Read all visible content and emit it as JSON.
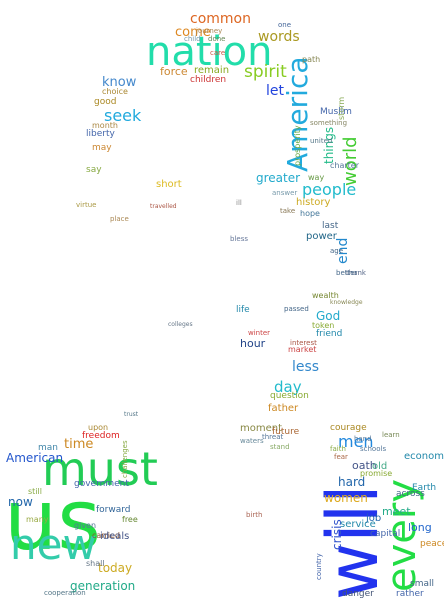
{
  "words": [
    {
      "text": "us",
      "color": "#22dd44"
    },
    {
      "text": "will",
      "color": "#2233ee"
    },
    {
      "text": "must",
      "color": "#22cc55"
    },
    {
      "text": "nation",
      "color": "#22ddaa"
    },
    {
      "text": "new",
      "color": "#33ccaa"
    },
    {
      "text": "every",
      "color": "#22dd44"
    },
    {
      "text": "America",
      "color": "#22aadd"
    },
    {
      "text": "common",
      "color": "#dd6622"
    },
    {
      "text": "spirit",
      "color": "#88cc22"
    },
    {
      "text": "people",
      "color": "#22bbcc"
    },
    {
      "text": "world",
      "color": "#44cc33"
    },
    {
      "text": "words",
      "color": "#aa9922"
    },
    {
      "text": "come",
      "color": "#dd8822"
    },
    {
      "text": "force",
      "color": "#cc8833"
    },
    {
      "text": "remain",
      "color": "#88aa22"
    },
    {
      "text": "children",
      "color": "#cc3333"
    },
    {
      "text": "know",
      "color": "#4488cc"
    },
    {
      "text": "let",
      "color": "#2244dd"
    },
    {
      "text": "seek",
      "color": "#22aadd"
    },
    {
      "text": "things",
      "color": "#22bb88"
    },
    {
      "text": "end",
      "color": "#2288cc"
    },
    {
      "text": "greater",
      "color": "#22aacc"
    },
    {
      "text": "history",
      "color": "#ccaa22"
    },
    {
      "text": "short",
      "color": "#ddbb22"
    },
    {
      "text": "time",
      "color": "#cc8822"
    },
    {
      "text": "men",
      "color": "#2288dd"
    },
    {
      "text": "day",
      "color": "#22bbcc"
    },
    {
      "text": "less",
      "color": "#3388cc"
    },
    {
      "text": "God",
      "color": "#22aacc"
    },
    {
      "text": "hour",
      "color": "#224488"
    },
    {
      "text": "American",
      "color": "#2255cc"
    },
    {
      "text": "now",
      "color": "#2266aa"
    },
    {
      "text": "today",
      "color": "#ccaa22"
    },
    {
      "text": "generation",
      "color": "#22aa88"
    },
    {
      "text": "hard",
      "color": "#2266aa"
    },
    {
      "text": "meet",
      "color": "#22aa88"
    },
    {
      "text": "women",
      "color": "#ddaa22"
    },
    {
      "text": "long",
      "color": "#2266cc"
    },
    {
      "text": "crisis",
      "color": "#3355cc"
    },
    {
      "text": "father",
      "color": "#cc8822"
    },
    {
      "text": "moment",
      "color": "#888844"
    },
    {
      "text": "power",
      "color": "#226688"
    },
    {
      "text": "good",
      "color": "#aa8822"
    },
    {
      "text": "liberty",
      "color": "#4466aa"
    },
    {
      "text": "may",
      "color": "#cc8833"
    },
    {
      "text": "say",
      "color": "#88aa44"
    },
    {
      "text": "choice",
      "color": "#aa8833"
    },
    {
      "text": "month",
      "color": "#aa8844"
    },
    {
      "text": "hope",
      "color": "#447799"
    },
    {
      "text": "way",
      "color": "#669944"
    },
    {
      "text": "last",
      "color": "#446688"
    },
    {
      "text": "friend",
      "color": "#2288aa"
    },
    {
      "text": "future",
      "color": "#aa6633"
    },
    {
      "text": "question",
      "color": "#88aa33"
    },
    {
      "text": "market",
      "color": "#cc4444"
    },
    {
      "text": "wealth",
      "color": "#778833"
    },
    {
      "text": "token",
      "color": "#88aa33"
    },
    {
      "text": "oath",
      "color": "#445588"
    },
    {
      "text": "courage",
      "color": "#aa8822"
    },
    {
      "text": "economy",
      "color": "#2288aa"
    },
    {
      "text": "Earth",
      "color": "#2288aa"
    },
    {
      "text": "old",
      "color": "#44aa88"
    },
    {
      "text": "promise",
      "color": "#88aa33"
    },
    {
      "text": "across",
      "color": "#446688"
    },
    {
      "text": "job",
      "color": "#2266aa"
    },
    {
      "text": "service",
      "color": "#2288aa"
    },
    {
      "text": "capital",
      "color": "#4466aa"
    },
    {
      "text": "peace",
      "color": "#cc8822"
    },
    {
      "text": "rather",
      "color": "#4466aa"
    },
    {
      "text": "small",
      "color": "#446688"
    },
    {
      "text": "danger",
      "color": "#445577"
    },
    {
      "text": "freedom",
      "color": "#dd2222"
    },
    {
      "text": "man",
      "color": "#4488aa"
    },
    {
      "text": "government",
      "color": "#4466aa"
    },
    {
      "text": "upon",
      "color": "#aa8833"
    },
    {
      "text": "carried",
      "color": "#885533"
    },
    {
      "text": "forward",
      "color": "#336699"
    },
    {
      "text": "ideals",
      "color": "#445588"
    },
    {
      "text": "free",
      "color": "#668833"
    },
    {
      "text": "given",
      "color": "#557799"
    },
    {
      "text": "still",
      "color": "#88aa44"
    },
    {
      "text": "shall",
      "color": "#667788"
    },
    {
      "text": "many",
      "color": "#99aa44"
    },
    {
      "text": "Muslim",
      "color": "#4466aa"
    },
    {
      "text": "path",
      "color": "#888855"
    },
    {
      "text": "storm",
      "color": "#88aa55"
    },
    {
      "text": "charter",
      "color": "#557799"
    },
    {
      "text": "prosperity",
      "color": "#66aa44"
    },
    {
      "text": "virtue",
      "color": "#aa9944"
    },
    {
      "text": "journey",
      "color": "#aa8855"
    },
    {
      "text": "child",
      "color": "#7799aa"
    },
    {
      "text": "done",
      "color": "#668855"
    },
    {
      "text": "one",
      "color": "#446699"
    },
    {
      "text": "something",
      "color": "#888866"
    },
    {
      "text": "answer",
      "color": "#7799aa"
    },
    {
      "text": "united",
      "color": "#557788"
    },
    {
      "text": "bless",
      "color": "#667799"
    },
    {
      "text": "thank",
      "color": "#556688"
    },
    {
      "text": "better",
      "color": "#446688"
    },
    {
      "text": "knowledge",
      "color": "#888855"
    },
    {
      "text": "winter",
      "color": "#cc4444"
    },
    {
      "text": "passed",
      "color": "#446688"
    },
    {
      "text": "life",
      "color": "#2288aa"
    },
    {
      "text": "threat",
      "color": "#557799"
    },
    {
      "text": "waters",
      "color": "#668899"
    },
    {
      "text": "interest",
      "color": "#aa5544"
    },
    {
      "text": "stand",
      "color": "#88aa66"
    },
    {
      "text": "trust",
      "color": "#557788"
    },
    {
      "text": "birth",
      "color": "#aa6655"
    },
    {
      "text": "country",
      "color": "#4466aa"
    },
    {
      "text": "cooperation",
      "color": "#557788"
    },
    {
      "text": "age",
      "color": "#446688"
    },
    {
      "text": "take",
      "color": "#887755"
    },
    {
      "text": "hand",
      "color": "#557799"
    },
    {
      "text": "faith",
      "color": "#88aa44"
    },
    {
      "text": "learn",
      "color": "#778855"
    },
    {
      "text": "fear",
      "color": "#aa6644"
    },
    {
      "text": "schools",
      "color": "#557799"
    },
    {
      "text": "challenges",
      "color": "#88aa44"
    },
    {
      "text": "place",
      "color": "#aa8855"
    },
    {
      "text": "travelled",
      "color": "#aa5544"
    },
    {
      "text": "colleges",
      "color": "#667788"
    },
    {
      "text": "ill",
      "color": "#888888"
    },
    {
      "text": "care",
      "color": "#cc5544"
    }
  ]
}
